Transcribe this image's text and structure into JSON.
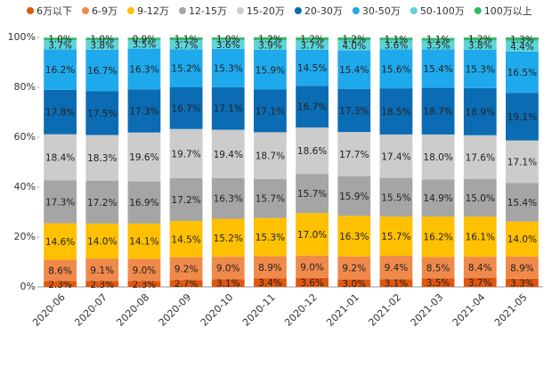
{
  "chart_data": {
    "type": "stacked_bar",
    "categories": [
      "2020-06",
      "2020-07",
      "2020-08",
      "2020-09",
      "2020-10",
      "2020-11",
      "2020-12",
      "2021-01",
      "2021-02",
      "2021-03",
      "2021-04",
      "2021-05"
    ],
    "series": [
      {
        "name": "6万以下",
        "color": "#e2570c",
        "values": [
          2.3,
          2.3,
          2.3,
          2.7,
          3.1,
          3.4,
          3.6,
          3.0,
          3.1,
          3.5,
          3.7,
          3.3
        ],
        "value_labels": [
          "2.3%",
          "2.3%",
          "2.3%",
          "2.7%",
          "3.1%",
          "3.4%",
          "3.6%",
          "3.0%",
          "3.1%",
          "3.5%",
          "3.7%",
          "3.3%"
        ]
      },
      {
        "name": "6-9万",
        "color": "#f08a4b",
        "values": [
          8.6,
          9.1,
          9.0,
          9.2,
          9.0,
          8.9,
          9.0,
          9.2,
          9.4,
          8.5,
          8.4,
          8.9
        ],
        "value_labels": [
          "8.6%",
          "9.1%",
          "9.0%",
          "9.2%",
          "9.0%",
          "8.9%",
          "9.0%",
          "9.2%",
          "9.4%",
          "8.5%",
          "8.4%",
          "8.9%"
        ]
      },
      {
        "name": "9-12万",
        "color": "#ffc000",
        "values": [
          14.6,
          14.0,
          14.1,
          14.5,
          15.2,
          15.3,
          17.0,
          16.3,
          15.7,
          16.2,
          16.1,
          14.0
        ],
        "value_labels": [
          "14.6%",
          "14.0%",
          "14.1%",
          "14.5%",
          "15.2%",
          "15.3%",
          "17.0%",
          "16.3%",
          "15.7%",
          "16.2%",
          "16.1%",
          "14.0%"
        ]
      },
      {
        "name": "12-15万",
        "color": "#a5a5a5",
        "values": [
          17.3,
          17.2,
          16.9,
          17.2,
          16.3,
          15.7,
          15.7,
          15.9,
          15.5,
          14.9,
          15.0,
          15.4
        ],
        "value_labels": [
          "17.3%",
          "17.2%",
          "16.9%",
          "17.2%",
          "16.3%",
          "15.7%",
          "15.7%",
          "15.9%",
          "15.5%",
          "14.9%",
          "15.0%",
          "15.4%"
        ]
      },
      {
        "name": "15-20万",
        "color": "#cccccc",
        "values": [
          18.4,
          18.3,
          19.6,
          19.7,
          19.4,
          18.7,
          18.6,
          17.7,
          17.4,
          18.0,
          17.6,
          17.1
        ],
        "value_labels": [
          "18.4%",
          "18.3%",
          "19.6%",
          "19.7%",
          "19.4%",
          "18.7%",
          "18.6%",
          "17.7%",
          "17.4%",
          "18.0%",
          "17.6%",
          "17.1%"
        ]
      },
      {
        "name": "20-30万",
        "color": "#0b6cb3",
        "values": [
          17.8,
          17.5,
          17.3,
          16.7,
          17.1,
          17.1,
          16.7,
          17.3,
          18.5,
          18.7,
          18.9,
          19.1
        ],
        "value_labels": [
          "17.8%",
          "17.5%",
          "17.3%",
          "16.7%",
          "17.1%",
          "17.1%",
          "16.7%",
          "17.3%",
          "18.5%",
          "18.7%",
          "18.9%",
          "19.1%"
        ]
      },
      {
        "name": "30-50万",
        "color": "#1ea9ec",
        "values": [
          16.2,
          16.7,
          16.3,
          15.2,
          15.3,
          15.9,
          14.5,
          15.4,
          15.6,
          15.4,
          15.3,
          16.5
        ],
        "value_labels": [
          "16.2%",
          "16.7%",
          "16.3%",
          "15.2%",
          "15.3%",
          "15.9%",
          "14.5%",
          "15.4%",
          "15.6%",
          "15.4%",
          "15.3%",
          "16.5%"
        ]
      },
      {
        "name": "50-100万",
        "color": "#5ed3d8",
        "values": [
          3.7,
          3.8,
          3.5,
          3.7,
          3.6,
          3.9,
          3.7,
          4.0,
          3.6,
          3.5,
          3.8,
          4.4
        ],
        "value_labels": [
          "3.7%",
          "3.8%",
          "3.5%",
          "3.7%",
          "3.6%",
          "3.9%",
          "3.7%",
          "4.0%",
          "3.6%",
          "3.5%",
          "3.8%",
          "4.4%"
        ]
      },
      {
        "name": "100万以上",
        "color": "#33b86a",
        "values": [
          1.0,
          1.0,
          0.9,
          1.1,
          1.0,
          1.2,
          1.2,
          1.2,
          1.1,
          1.1,
          1.2,
          1.3
        ],
        "value_labels": [
          "1.0%",
          "1.0%",
          "0.9%",
          "1.1%",
          "1.0%",
          "1.2%",
          "1.2%",
          "1.2%",
          "1.1%",
          "1.1%",
          "1.2%",
          "1.3%"
        ]
      }
    ],
    "ylim": [
      0,
      100
    ],
    "yticks": [
      {
        "value": 0,
        "label": "0%"
      },
      {
        "value": 20,
        "label": "20%"
      },
      {
        "value": 40,
        "label": "40%"
      },
      {
        "value": 60,
        "label": "60%"
      },
      {
        "value": 80,
        "label": "80%"
      },
      {
        "value": 100,
        "label": "100%"
      }
    ],
    "legend": "top"
  }
}
